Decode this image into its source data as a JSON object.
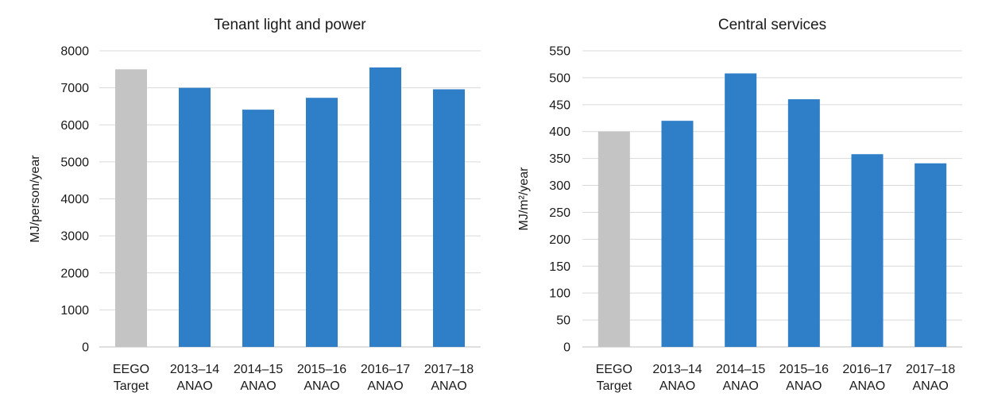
{
  "chart_data": [
    {
      "type": "bar",
      "title": "Tenant light and power",
      "xlabel": "",
      "ylabel": "MJ/person/year",
      "ylim": [
        0,
        8000
      ],
      "yticks": [
        "0",
        "1000",
        "2000",
        "3000",
        "4000",
        "5000",
        "6000",
        "7000",
        "8000"
      ],
      "categories": [
        [
          "EEGO",
          "Target"
        ],
        [
          "2013–14",
          "ANAO"
        ],
        [
          "2014–15",
          "ANAO"
        ],
        [
          "2015–16",
          "ANAO"
        ],
        [
          "2016–17",
          "ANAO"
        ],
        [
          "2017–18",
          "ANAO"
        ]
      ],
      "values": [
        7500,
        7000,
        6410,
        6730,
        7550,
        6960
      ],
      "bar_colors": [
        "#c4c4c4",
        "#2f7ec8",
        "#2f7ec8",
        "#2f7ec8",
        "#2f7ec8",
        "#2f7ec8"
      ],
      "grid": true,
      "legend": "none"
    },
    {
      "type": "bar",
      "title": "Central services",
      "xlabel": "",
      "ylabel": "MJ/m²/year",
      "ylim": [
        0,
        550
      ],
      "yticks": [
        "0",
        "50",
        "100",
        "150",
        "200",
        "250",
        "300",
        "350",
        "400",
        "450",
        "500",
        "550"
      ],
      "categories": [
        [
          "EEGO",
          "Target"
        ],
        [
          "2013–14",
          "ANAO"
        ],
        [
          "2014–15",
          "ANAO"
        ],
        [
          "2015–16",
          "ANAO"
        ],
        [
          "2016–17",
          "ANAO"
        ],
        [
          "2017–18",
          "ANAO"
        ]
      ],
      "values": [
        400,
        420,
        508,
        460,
        358,
        341
      ],
      "bar_colors": [
        "#c4c4c4",
        "#2f7ec8",
        "#2f7ec8",
        "#2f7ec8",
        "#2f7ec8",
        "#2f7ec8"
      ],
      "grid": true,
      "legend": "none"
    }
  ]
}
